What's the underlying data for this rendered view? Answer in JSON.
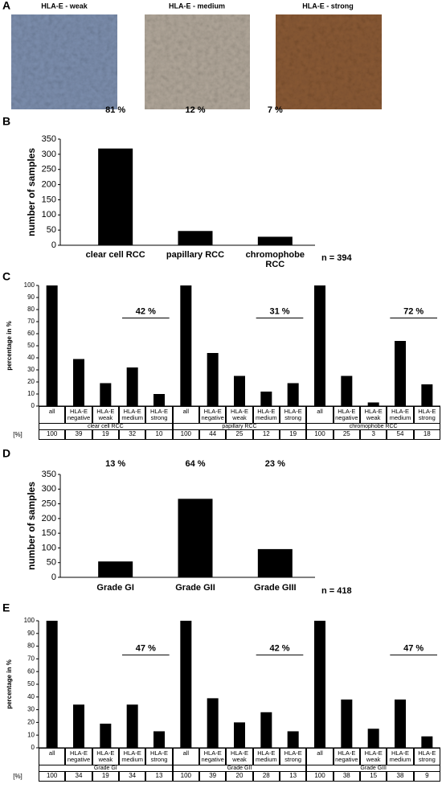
{
  "panel_a": {
    "panel_label": "A",
    "titles": [
      "HLA-E - weak",
      "HLA-E - medium",
      "HLA-E - strong"
    ]
  },
  "chart_data": [
    {
      "type": "bar",
      "panel_label": "B",
      "ylabel": "number of samples",
      "categories": [
        "clear cell RCC",
        "papillary RCC",
        "chromophobe RCC"
      ],
      "values": [
        319,
        47,
        28
      ],
      "color": "#000000",
      "annotations": [
        "81 %",
        "12 %",
        "7 %"
      ],
      "note": "n = 394",
      "ylim": [
        0,
        350
      ],
      "yticks": [
        0,
        50,
        100,
        150,
        200,
        250,
        300,
        350
      ]
    },
    {
      "type": "grouped",
      "panel_label": "C",
      "ylabel": "percentage in %",
      "categories": [
        "all",
        "HLA-E negative",
        "HLA-E weak",
        "HLA-E medium",
        "HLA-E strong",
        "all",
        "HLA-E negative",
        "HLA-E weak",
        "HLA-E medium",
        "HLA-E strong",
        "all",
        "HLA-E negative",
        "HLA-E weak",
        "HLA-E medium",
        "HLA-E strong"
      ],
      "groups": [
        "clear cell RCC",
        "papillary RCC",
        "chromophobe RCC"
      ],
      "values": [
        100,
        39,
        19,
        32,
        10,
        100,
        44,
        25,
        12,
        19,
        100,
        25,
        3,
        54,
        18
      ],
      "color": "#000000",
      "table_label": "[%]",
      "annotations": [
        "42 %",
        "31 %",
        "72 %"
      ],
      "ylim": [
        0,
        100
      ],
      "yticks": [
        0,
        10,
        20,
        30,
        40,
        50,
        60,
        70,
        80,
        90,
        100
      ]
    },
    {
      "type": "bar",
      "panel_label": "D",
      "ylabel": "number of samples",
      "categories": [
        "Grade GI",
        "Grade GII",
        "Grade GIII"
      ],
      "values": [
        54,
        267,
        96
      ],
      "color": "#000000",
      "annotations": [
        "13 %",
        "64 %",
        "23 %"
      ],
      "note": "n = 418",
      "ylim": [
        0,
        350
      ],
      "yticks": [
        0,
        50,
        100,
        150,
        200,
        250,
        300,
        350
      ]
    },
    {
      "type": "grouped",
      "panel_label": "E",
      "ylabel": "percentage in %",
      "categories": [
        "all",
        "HLA-E negative",
        "HLA-E weak",
        "HLA-E medium",
        "HLA-E strong",
        "all",
        "HLA-E negative",
        "HLA-E weak",
        "HLA-E medium",
        "HLA-E strong",
        "all",
        "HLA-E negative",
        "HLA-E weak",
        "HLA-E medium",
        "HLA-E strong"
      ],
      "groups": [
        "Grade GI",
        "Grade GII",
        "Grade GIII"
      ],
      "values": [
        100,
        34,
        19,
        34,
        13,
        100,
        39,
        20,
        28,
        13,
        100,
        38,
        15,
        38,
        9
      ],
      "color": "#000000",
      "table_label": "[%]",
      "annotations": [
        "47 %",
        "42 %",
        "47 %"
      ],
      "ylim": [
        0,
        100
      ],
      "yticks": [
        0,
        10,
        20,
        30,
        40,
        50,
        60,
        70,
        80,
        90,
        100
      ]
    }
  ]
}
